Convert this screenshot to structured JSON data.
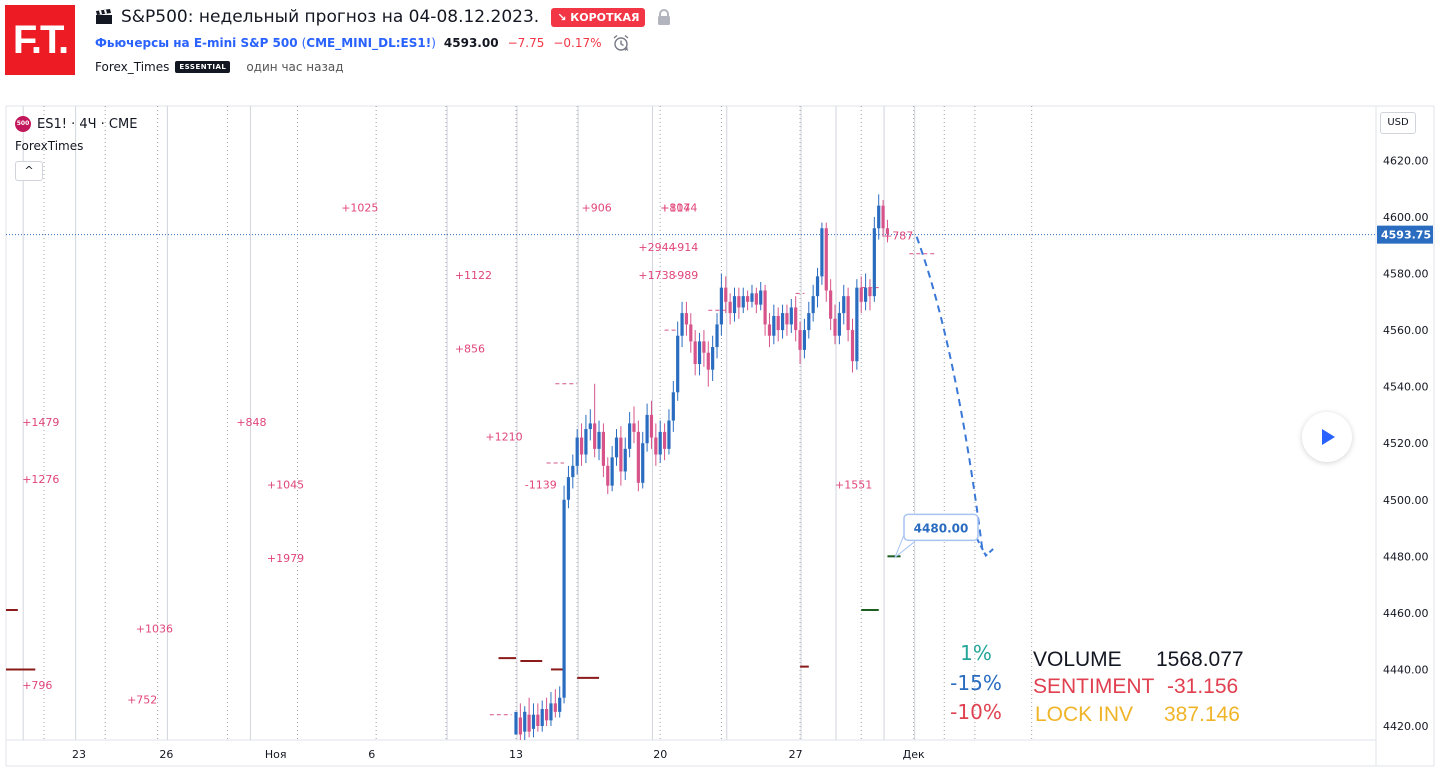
{
  "header": {
    "logo_text": "F.T.",
    "title": "S&P500: недельный прогноз на 04-08.12.2023.",
    "direction_badge": "↘ КОРОТКАЯ",
    "symbol_name": "Фьючерсы на E-mini S&P 500",
    "symbol_code": "CME_MINI_DL:ES1!",
    "paren_open": "(",
    "paren_close": ")",
    "price": "4593.00",
    "change": "−7.75",
    "change_pct": "−0.17%",
    "author": "Forex_Times",
    "author_badge": "ESSENTIAL",
    "published": "один час назад"
  },
  "chart_header": {
    "symbol_icon_text": "500",
    "symbol_label": "ES1! · 4Ч · CME",
    "indicator_name": "ForexTimes",
    "collapse_label": "^",
    "currency": "USD"
  },
  "colors": {
    "up": "#2a6cc0",
    "down": "#d6548a",
    "volume_label": "#e0457b",
    "level_dark": "#8b1a1a",
    "level_green": "#1b5e20",
    "forecast": "#3a78d8"
  },
  "chart_data": {
    "type": "candlestick",
    "ylim": [
      4415,
      4630
    ],
    "y_ticks": [
      4420,
      4440,
      4460,
      4480,
      4500,
      4520,
      4540,
      4560,
      4580,
      4600,
      4620
    ],
    "x_tick_labels": [
      {
        "label": "23",
        "bar": -100
      },
      {
        "label": "26",
        "bar": -80
      },
      {
        "label": "Ноя",
        "bar": -55
      },
      {
        "label": "6",
        "bar": -33
      },
      {
        "label": "13",
        "bar": 0
      },
      {
        "label": "20",
        "bar": 33
      },
      {
        "label": "27",
        "bar": 64
      },
      {
        "label": "Дек",
        "bar": 91
      }
    ],
    "current_price": "4593.75",
    "target_label": "4480.00",
    "candles": [
      [
        4417,
        4425,
        4413,
        4410
      ],
      [
        4423,
        4417,
        4428,
        4415
      ],
      [
        4418,
        4425,
        4427,
        4414
      ],
      [
        4424,
        4418,
        4430,
        4416
      ],
      [
        4419,
        4424,
        4428,
        4416
      ],
      [
        4424,
        4420,
        4428,
        4418
      ],
      [
        4420,
        4426,
        4429,
        4418
      ],
      [
        4426,
        4422,
        4430,
        4420
      ],
      [
        4422,
        4428,
        4432,
        4420
      ],
      [
        4428,
        4425,
        4433,
        4423
      ],
      [
        4425,
        4430,
        4434,
        4423
      ],
      [
        4430,
        4500,
        4505,
        4428
      ],
      [
        4500,
        4508,
        4512,
        4497
      ],
      [
        4508,
        4512,
        4516,
        4504
      ],
      [
        4512,
        4522,
        4525,
        4509
      ],
      [
        4522,
        4516,
        4527,
        4512
      ],
      [
        4516,
        4525,
        4530,
        4513
      ],
      [
        4525,
        4527,
        4532,
        4521
      ],
      [
        4527,
        4518,
        4541,
        4515
      ],
      [
        4518,
        4524,
        4528,
        4514
      ],
      [
        4524,
        4512,
        4527,
        4508
      ],
      [
        4512,
        4505,
        4515,
        4502
      ],
      [
        4505,
        4515,
        4519,
        4503
      ],
      [
        4515,
        4522,
        4525,
        4512
      ],
      [
        4522,
        4510,
        4526,
        4505
      ],
      [
        4510,
        4518,
        4522,
        4507
      ],
      [
        4518,
        4527,
        4531,
        4515
      ],
      [
        4527,
        4524,
        4533,
        4520
      ],
      [
        4524,
        4506,
        4528,
        4503
      ],
      [
        4506,
        4520,
        4524,
        4504
      ],
      [
        4520,
        4530,
        4534,
        4517
      ],
      [
        4530,
        4522,
        4535,
        4518
      ],
      [
        4522,
        4516,
        4527,
        4512
      ],
      [
        4516,
        4524,
        4528,
        4513
      ],
      [
        4524,
        4518,
        4527,
        4514
      ],
      [
        4518,
        4528,
        4532,
        4516
      ],
      [
        4528,
        4538,
        4542,
        4524
      ],
      [
        4538,
        4558,
        4563,
        4535
      ],
      [
        4558,
        4566,
        4570,
        4554
      ],
      [
        4566,
        4562,
        4570,
        4558
      ],
      [
        4562,
        4556,
        4566,
        4552
      ],
      [
        4556,
        4548,
        4560,
        4544
      ],
      [
        4548,
        4556,
        4559,
        4544
      ],
      [
        4556,
        4552,
        4560,
        4547
      ],
      [
        4552,
        4546,
        4556,
        4540
      ],
      [
        4546,
        4554,
        4558,
        4542
      ],
      [
        4554,
        4562,
        4566,
        4550
      ],
      [
        4562,
        4575,
        4580,
        4558
      ],
      [
        4575,
        4570,
        4579,
        4566
      ],
      [
        4570,
        4566,
        4573,
        4562
      ],
      [
        4566,
        4572,
        4575,
        4563
      ],
      [
        4572,
        4568,
        4575,
        4564
      ],
      [
        4568,
        4572,
        4575,
        4566
      ],
      [
        4572,
        4570,
        4574,
        4567
      ],
      [
        4570,
        4573,
        4576,
        4568
      ],
      [
        4573,
        4569,
        4575,
        4566
      ],
      [
        4569,
        4574,
        4577,
        4567
      ],
      [
        4574,
        4562,
        4576,
        4558
      ],
      [
        4562,
        4558,
        4566,
        4554
      ],
      [
        4558,
        4565,
        4569,
        4555
      ],
      [
        4565,
        4560,
        4568,
        4556
      ],
      [
        4560,
        4566,
        4569,
        4557
      ],
      [
        4566,
        4562,
        4569,
        4558
      ],
      [
        4562,
        4568,
        4571,
        4559
      ],
      [
        4568,
        4560,
        4572,
        4556
      ],
      [
        4560,
        4553,
        4563,
        4548
      ],
      [
        4553,
        4560,
        4564,
        4550
      ],
      [
        4560,
        4566,
        4570,
        4557
      ],
      [
        4566,
        4572,
        4576,
        4563
      ],
      [
        4572,
        4579,
        4582,
        4568
      ],
      [
        4579,
        4596,
        4598,
        4576
      ],
      [
        4596,
        4574,
        4598,
        4570
      ],
      [
        4574,
        4564,
        4578,
        4560
      ],
      [
        4564,
        4558,
        4569,
        4555
      ],
      [
        4558,
        4566,
        4570,
        4555
      ],
      [
        4566,
        4572,
        4576,
        4562
      ],
      [
        4572,
        4560,
        4575,
        4556
      ],
      [
        4560,
        4549,
        4564,
        4545
      ],
      [
        4549,
        4575,
        4578,
        4546
      ],
      [
        4575,
        4570,
        4579,
        4566
      ],
      [
        4570,
        4575,
        4580,
        4567
      ],
      [
        4575,
        4572,
        4578,
        4567
      ],
      [
        4572,
        4596,
        4600,
        4570
      ],
      [
        4596,
        4604,
        4608,
        4592
      ],
      [
        4604,
        4596,
        4606,
        4593
      ],
      [
        4596,
        4594,
        4599,
        4591
      ]
    ],
    "volume_profile": [
      {
        "label": "+817",
        "bar": 33,
        "price": 4602
      },
      {
        "label": "+787",
        "bar": 84,
        "price": 4592
      },
      {
        "label": "+1025",
        "bar": -40,
        "price": 4602
      },
      {
        "label": "+906",
        "bar": 15,
        "price": 4602
      },
      {
        "label": "+1044",
        "bar": 33,
        "price": 4602
      },
      {
        "label": "+2944",
        "bar": 28,
        "price": 4588
      },
      {
        "label": "-914",
        "bar": 36,
        "price": 4588
      },
      {
        "label": "+1738",
        "bar": 28,
        "price": 4578
      },
      {
        "label": "-989",
        "bar": 36,
        "price": 4578
      },
      {
        "label": "+1122",
        "bar": -14,
        "price": 4578
      },
      {
        "label": "+856",
        "bar": -14,
        "price": 4552
      },
      {
        "label": "+1479",
        "bar": -113,
        "price": 4526
      },
      {
        "label": "+848",
        "bar": -64,
        "price": 4526
      },
      {
        "label": "+1210",
        "bar": -7,
        "price": 4521
      },
      {
        "label": "+1276",
        "bar": -113,
        "price": 4506
      },
      {
        "label": "+1045",
        "bar": -57,
        "price": 4504
      },
      {
        "label": "-1139",
        "bar": 2,
        "price": 4504
      },
      {
        "label": "+1551",
        "bar": 73,
        "price": 4504
      },
      {
        "label": "+1979",
        "bar": -57,
        "price": 4478
      },
      {
        "label": "+1036",
        "bar": -87,
        "price": 4453
      },
      {
        "label": "+796",
        "bar": -113,
        "price": 4433
      },
      {
        "label": "+752",
        "bar": -89,
        "price": 4428
      }
    ],
    "levels": [
      {
        "price": 4461,
        "from_bar": -121,
        "to_bar": -114,
        "color": "dark"
      },
      {
        "price": 4440,
        "from_bar": -118,
        "to_bar": -110,
        "color": "dark"
      },
      {
        "price": 4444,
        "from_bar": -4,
        "to_bar": 0,
        "color": "dark"
      },
      {
        "price": 4443,
        "from_bar": 1,
        "to_bar": 6,
        "color": "dark"
      },
      {
        "price": 4440,
        "from_bar": 8,
        "to_bar": 11,
        "color": "dark"
      },
      {
        "price": 4437,
        "from_bar": 14,
        "to_bar": 19,
        "color": "dark"
      },
      {
        "price": 4441,
        "from_bar": 65,
        "to_bar": 67,
        "color": "dark"
      },
      {
        "price": 4461,
        "from_bar": 79,
        "to_bar": 83,
        "color": "green"
      },
      {
        "price": 4480,
        "from_bar": 85,
        "to_bar": 88,
        "color": "green"
      }
    ],
    "forecast": {
      "from_bar": 91,
      "from_price": 4593,
      "to_bar": 105,
      "to_price": 4481
    },
    "stats": {
      "pct1": "1%",
      "pct2": "-15%",
      "pct3": "-10%",
      "volume_label": "VOLUME",
      "volume_value": "1568.077",
      "sentiment_label": "SENTIMENT",
      "sentiment_value": "-31.156",
      "lock_label": "LOCK INV",
      "lock_value": "387.146"
    }
  }
}
